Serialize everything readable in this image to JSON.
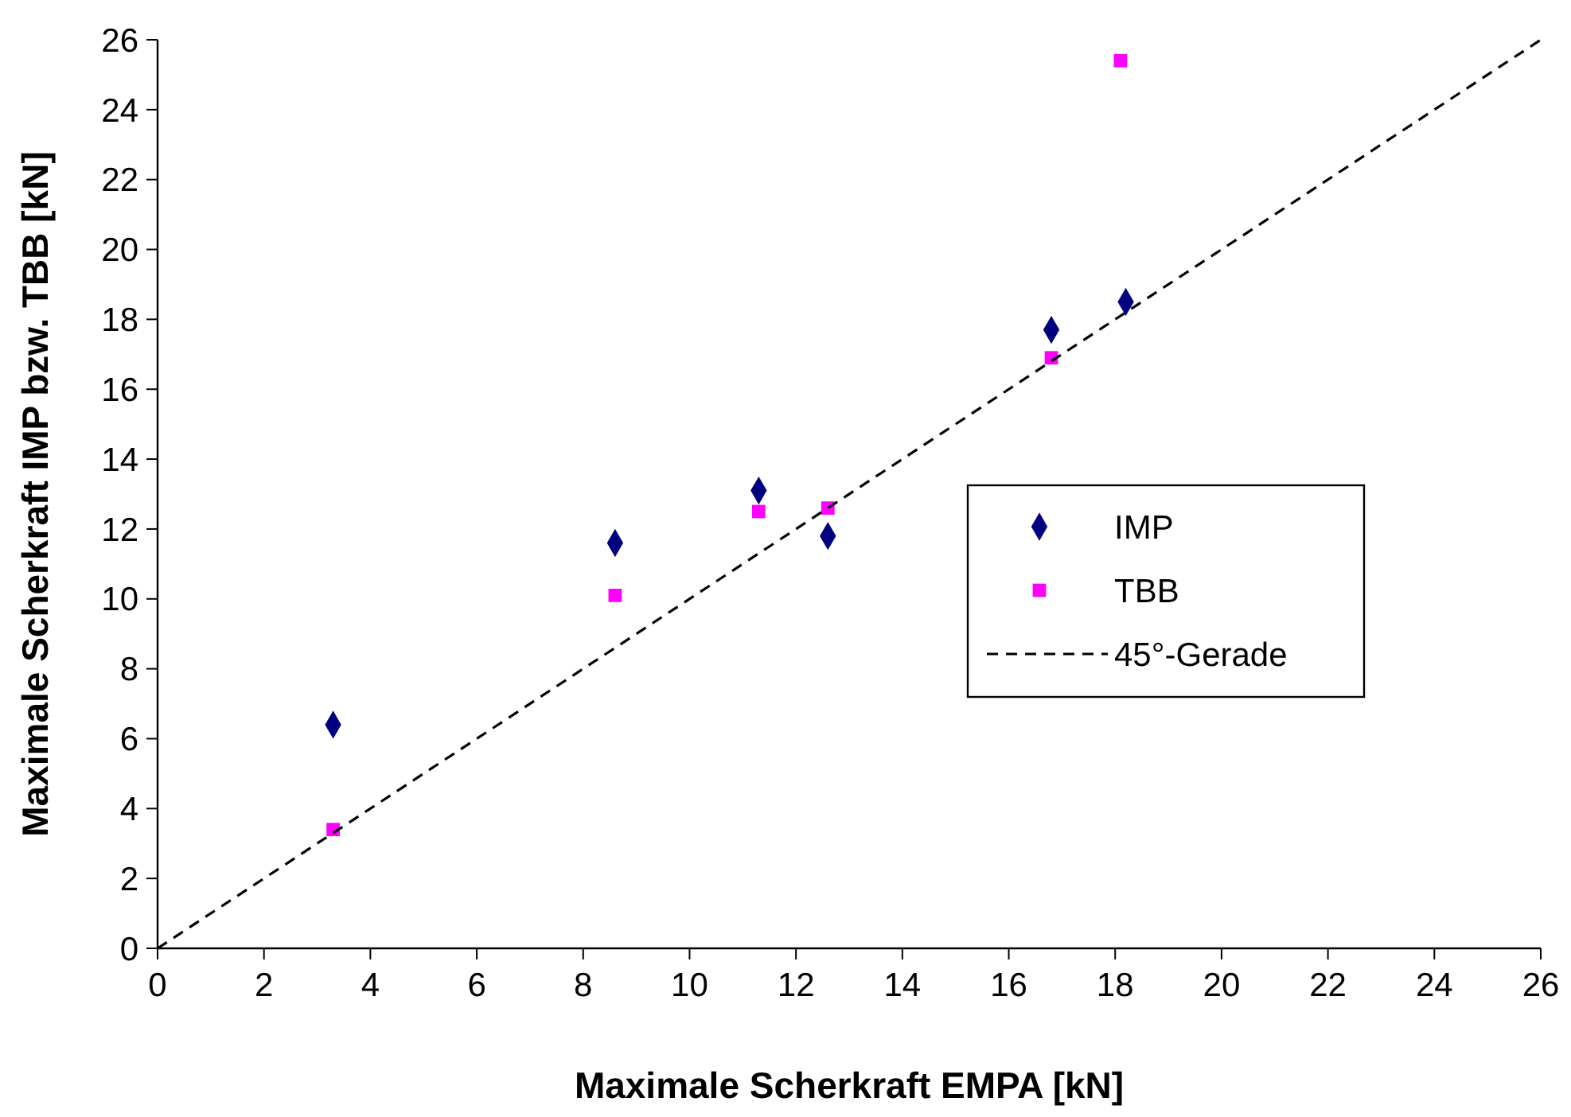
{
  "chart_data": {
    "type": "scatter",
    "xlabel": "Maximale Scherkraft EMPA [kN]",
    "ylabel": "Maximale Scherkraft IMP bzw. TBB [kN]",
    "xlim": [
      0,
      26
    ],
    "ylim": [
      0,
      26
    ],
    "xticks": [
      0,
      2,
      4,
      6,
      8,
      10,
      12,
      14,
      16,
      18,
      20,
      22,
      24,
      26
    ],
    "yticks": [
      0,
      2,
      4,
      6,
      8,
      10,
      12,
      14,
      16,
      18,
      20,
      22,
      24,
      26
    ],
    "grid": false,
    "legend": "right",
    "series": [
      {
        "name": "IMP",
        "marker": "diamond",
        "color": "#000080",
        "x": [
          3.3,
          8.6,
          11.3,
          12.6,
          16.8,
          18.2
        ],
        "values": [
          6.4,
          11.6,
          13.1,
          11.8,
          17.7,
          18.5
        ]
      },
      {
        "name": "TBB",
        "marker": "square",
        "color": "#ff00ff",
        "x": [
          3.3,
          8.6,
          11.3,
          12.6,
          16.8,
          18.1
        ],
        "values": [
          3.4,
          10.1,
          12.5,
          12.6,
          16.9,
          25.4
        ]
      },
      {
        "name": "45°-Gerade",
        "type": "line",
        "marker": "none",
        "line_style": "dashed",
        "color": "#000000",
        "x": [
          0,
          26
        ],
        "values": [
          0,
          26
        ]
      }
    ]
  }
}
